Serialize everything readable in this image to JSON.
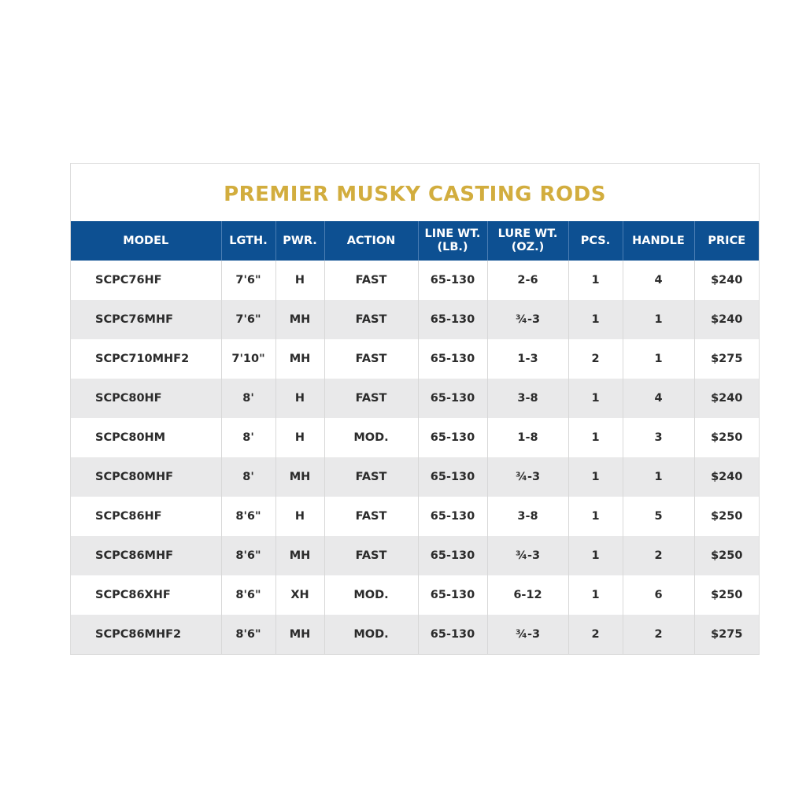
{
  "title": "PREMIER MUSKY CASTING RODS",
  "colors": {
    "title": "#d2ad3e",
    "header": "#0d5092",
    "alt_row": "#e9e9ea"
  },
  "columns": [
    "MODEL",
    "LGTH.",
    "PWR.",
    "ACTION",
    "LINE WT.\n(LB.)",
    "LURE WT.\n(OZ.)",
    "PCS.",
    "HANDLE",
    "PRICE"
  ],
  "rows": [
    [
      "SCPC76HF",
      "7'6\"",
      "H",
      "FAST",
      "65-130",
      "2-6",
      "1",
      "4",
      "$240"
    ],
    [
      "SCPC76MHF",
      "7'6\"",
      "MH",
      "FAST",
      "65-130",
      "¾-3",
      "1",
      "1",
      "$240"
    ],
    [
      "SCPC710MHF2",
      "7'10\"",
      "MH",
      "FAST",
      "65-130",
      "1-3",
      "2",
      "1",
      "$275"
    ],
    [
      "SCPC80HF",
      "8'",
      "H",
      "FAST",
      "65-130",
      "3-8",
      "1",
      "4",
      "$240"
    ],
    [
      "SCPC80HM",
      "8'",
      "H",
      "MOD.",
      "65-130",
      "1-8",
      "1",
      "3",
      "$250"
    ],
    [
      "SCPC80MHF",
      "8'",
      "MH",
      "FAST",
      "65-130",
      "¾-3",
      "1",
      "1",
      "$240"
    ],
    [
      "SCPC86HF",
      "8'6\"",
      "H",
      "FAST",
      "65-130",
      "3-8",
      "1",
      "5",
      "$250"
    ],
    [
      "SCPC86MHF",
      "8'6\"",
      "MH",
      "FAST",
      "65-130",
      "¾-3",
      "1",
      "2",
      "$250"
    ],
    [
      "SCPC86XHF",
      "8'6\"",
      "XH",
      "MOD.",
      "65-130",
      "6-12",
      "1",
      "6",
      "$250"
    ],
    [
      "SCPC86MHF2",
      "8'6\"",
      "MH",
      "MOD.",
      "65-130",
      "¾-3",
      "2",
      "2",
      "$275"
    ]
  ]
}
